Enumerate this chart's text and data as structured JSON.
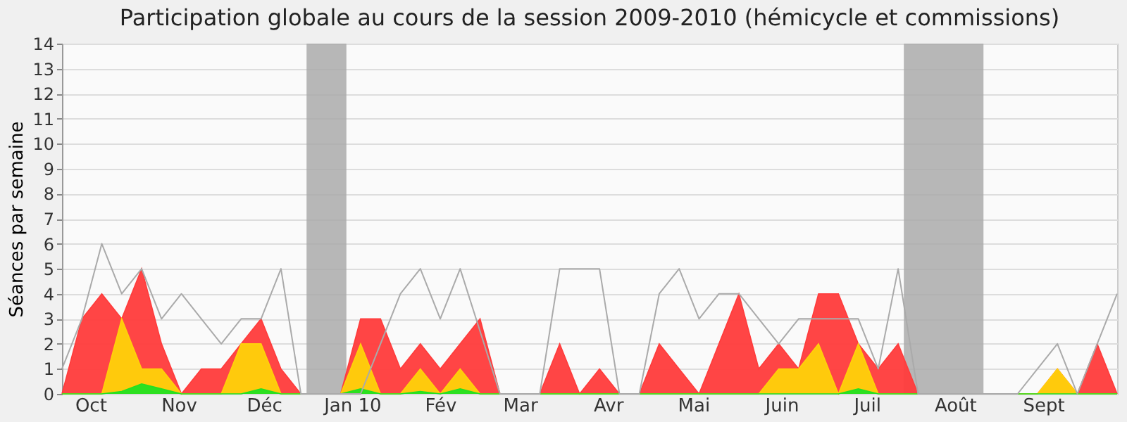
{
  "chart_data": {
    "type": "area",
    "title": "Participation globale au cours de la session 2009-2010 (hémicycle et commissions)",
    "ylabel": "Séances par semaine",
    "x": [
      "2009-09-21",
      "2009-09-28",
      "2009-10-05",
      "2009-10-12",
      "2009-10-19",
      "2009-10-26",
      "2009-11-02",
      "2009-11-09",
      "2009-11-16",
      "2009-11-23",
      "2009-11-30",
      "2009-12-07",
      "2009-12-14",
      "2009-12-21",
      "2009-12-28",
      "2010-01-04",
      "2010-01-11",
      "2010-01-18",
      "2010-01-25",
      "2010-02-01",
      "2010-02-08",
      "2010-02-15",
      "2010-02-22",
      "2010-03-01",
      "2010-03-08",
      "2010-03-15",
      "2010-03-22",
      "2010-03-29",
      "2010-04-05",
      "2010-04-12",
      "2010-04-19",
      "2010-04-26",
      "2010-05-03",
      "2010-05-10",
      "2010-05-17",
      "2010-05-24",
      "2010-05-31",
      "2010-06-07",
      "2010-06-14",
      "2010-06-21",
      "2010-06-28",
      "2010-07-05",
      "2010-07-12",
      "2010-07-19",
      "2010-07-26",
      "2010-08-02",
      "2010-08-09",
      "2010-08-16",
      "2010-08-23",
      "2010-08-30",
      "2010-09-06",
      "2010-09-13",
      "2010-09-20",
      "2010-09-27"
    ],
    "xlim": [
      "2009-09-21",
      "2010-09-27"
    ],
    "xticks": [
      {
        "value": "2009-10-01",
        "label": "Oct"
      },
      {
        "value": "2009-11-01",
        "label": "Nov"
      },
      {
        "value": "2009-12-01",
        "label": "Déc"
      },
      {
        "value": "2010-01-01",
        "label": "Jan 10"
      },
      {
        "value": "2010-02-01",
        "label": "Fév"
      },
      {
        "value": "2010-03-01",
        "label": "Mar"
      },
      {
        "value": "2010-04-01",
        "label": "Avr"
      },
      {
        "value": "2010-05-01",
        "label": "Mai"
      },
      {
        "value": "2010-06-01",
        "label": "Juin"
      },
      {
        "value": "2010-07-01",
        "label": "Juil"
      },
      {
        "value": "2010-08-01",
        "label": "Août"
      },
      {
        "value": "2010-09-01",
        "label": "Sept"
      }
    ],
    "ylim": [
      0,
      14
    ],
    "yticks": [
      0,
      1,
      2,
      3,
      4,
      5,
      6,
      7,
      8,
      9,
      10,
      11,
      12,
      13,
      14
    ],
    "grid": "y",
    "bands": [
      {
        "axis": "x",
        "from": "2009-12-16",
        "to": "2009-12-30",
        "color": "#aaaaaa"
      },
      {
        "axis": "x",
        "from": "2010-07-14",
        "to": "2010-08-11",
        "color": "#aaaaaa"
      }
    ],
    "series": [
      {
        "color": "#ff3b3b",
        "values": [
          0,
          3,
          4,
          3,
          5,
          2,
          0,
          1,
          1,
          2,
          3,
          1,
          0,
          0,
          0,
          3,
          3,
          1,
          2,
          1,
          2,
          3,
          0,
          0,
          0,
          2,
          0,
          1,
          0,
          0,
          2,
          1,
          0,
          2,
          4,
          1,
          2,
          1,
          4,
          4,
          2,
          1,
          2,
          0,
          0,
          0,
          0,
          0,
          0,
          0,
          1,
          0,
          2,
          0
        ]
      },
      {
        "color": "#ffd20a",
        "values": [
          0,
          0,
          0,
          3,
          1,
          1,
          0,
          0,
          0,
          2,
          2,
          0,
          0,
          0,
          0,
          2,
          0,
          0,
          1,
          0,
          1,
          0,
          0,
          0,
          0,
          0,
          0,
          0,
          0,
          0,
          0,
          0,
          0,
          0,
          0,
          0,
          1,
          1,
          2,
          0,
          2,
          0,
          0,
          0,
          0,
          0,
          0,
          0,
          0,
          0,
          1,
          0,
          0,
          0
        ]
      },
      {
        "color": "#22e022",
        "values": [
          0,
          0,
          0,
          0.1,
          0.4,
          0.2,
          0,
          0,
          0,
          0,
          0.2,
          0,
          0,
          0,
          0,
          0.2,
          0,
          0,
          0.1,
          0,
          0.2,
          0,
          0,
          0,
          0,
          0,
          0,
          0,
          0,
          0,
          0,
          0,
          0,
          0,
          0,
          0,
          0,
          0,
          0,
          0,
          0.2,
          0,
          0,
          0,
          0,
          0,
          0,
          0,
          0,
          0,
          0,
          0,
          0,
          0
        ]
      },
      {
        "type": "line",
        "color": "#aaaaaa",
        "values": [
          1,
          3,
          6,
          4,
          5,
          3,
          4,
          3,
          2,
          3,
          3,
          5,
          0,
          0,
          0,
          0,
          2,
          4,
          5,
          3,
          5,
          2.5,
          0,
          0,
          0,
          5,
          5,
          5,
          0,
          0,
          4,
          5,
          3,
          4,
          4,
          3,
          2,
          3,
          3,
          3,
          3,
          1,
          5,
          0,
          0,
          0,
          0,
          0,
          0,
          1,
          2,
          0,
          2,
          4
        ]
      }
    ]
  }
}
